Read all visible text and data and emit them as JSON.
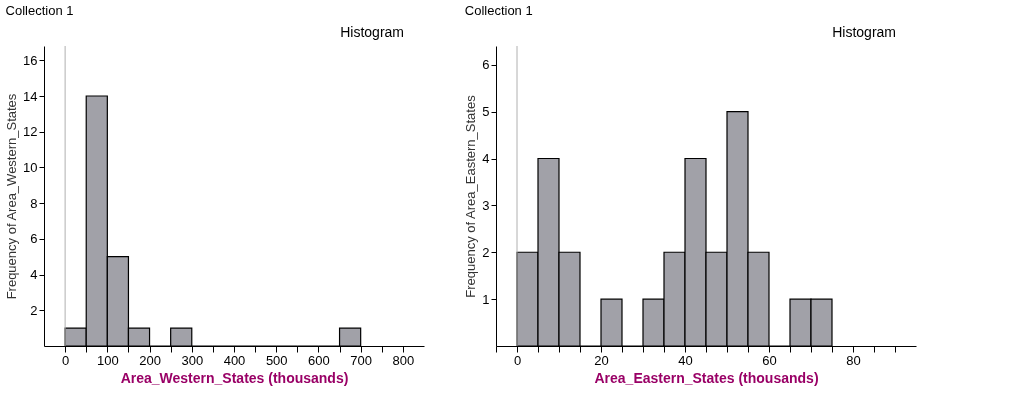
{
  "chart_data": [
    {
      "type": "histogram",
      "title": "Collection 1",
      "xlabel": "Area_Western_States (thousands)",
      "ylabel": "Frequency of Area_Western_States",
      "annotations": [
        "Histogram"
      ],
      "bins": [
        0,
        50,
        100,
        150,
        200,
        250,
        300,
        350,
        400,
        450,
        500,
        550,
        600,
        650,
        700
      ],
      "values": [
        1,
        14,
        5,
        1,
        0,
        1,
        0,
        0,
        0,
        0,
        0,
        0,
        0,
        1
      ],
      "color": "#a1a1a8",
      "xlim": [
        -50,
        850
      ],
      "ylim": [
        0,
        16.8
      ],
      "xticks": [
        0,
        {
          "value": 50,
          "label": null
        },
        100,
        {
          "value": 150,
          "label": null
        },
        200,
        {
          "value": 250,
          "label": null
        },
        300,
        {
          "value": 350,
          "label": null
        },
        400,
        {
          "value": 450,
          "label": null
        },
        500,
        {
          "value": 550,
          "label": null
        },
        600,
        {
          "value": 650,
          "label": null
        },
        700,
        {
          "value": 750,
          "label": null
        },
        800
      ],
      "yticks": [
        2,
        4,
        6,
        8,
        10,
        12,
        14,
        16
      ],
      "ref_lines": [
        {
          "axis": "x",
          "value": 0,
          "color": "#b0b0b0"
        }
      ],
      "grid": false
    },
    {
      "type": "histogram",
      "title": "Collection 1",
      "xlabel": "Area_Eastern_States (thousands)",
      "ylabel": "Frequency of Area_Eastern_States",
      "annotations": [
        "Histogram"
      ],
      "bins": [
        0,
        5,
        10,
        15,
        20,
        25,
        30,
        35,
        40,
        45,
        50,
        55,
        60,
        65,
        70,
        75
      ],
      "values": [
        2,
        4,
        2,
        0,
        1,
        0,
        1,
        2,
        4,
        2,
        5,
        2,
        0,
        1,
        1
      ],
      "color": "#a1a1a8",
      "xlim": [
        -5,
        95
      ],
      "ylim": [
        0,
        6.4
      ],
      "xticks": [
        {
          "value": -5,
          "label": null
        },
        0,
        {
          "value": 5,
          "label": null
        },
        {
          "value": 10,
          "label": null
        },
        {
          "value": 15,
          "label": null
        },
        20,
        {
          "value": 25,
          "label": null
        },
        {
          "value": 30,
          "label": null
        },
        {
          "value": 35,
          "label": null
        },
        40,
        {
          "value": 45,
          "label": null
        },
        {
          "value": 50,
          "label": null
        },
        {
          "value": 55,
          "label": null
        },
        60,
        {
          "value": 65,
          "label": null
        },
        {
          "value": 70,
          "label": null
        },
        {
          "value": 75,
          "label": null
        },
        80,
        {
          "value": 85,
          "label": null
        },
        {
          "value": 90,
          "label": null
        }
      ],
      "yticks": [
        1,
        2,
        3,
        4,
        5,
        6
      ],
      "ref_lines": [
        {
          "axis": "x",
          "value": 0,
          "color": "#b0b0b0"
        }
      ],
      "grid": false
    }
  ]
}
